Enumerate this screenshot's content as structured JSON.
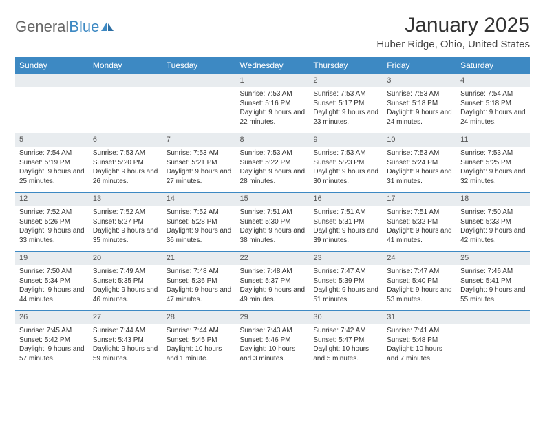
{
  "logo": {
    "text_general": "General",
    "text_blue": "Blue",
    "accent_color": "#3d89c3",
    "text_color": "#666666"
  },
  "title": "January 2025",
  "location": "Huber Ridge, Ohio, United States",
  "colors": {
    "header_bg": "#3d89c3",
    "header_text": "#ffffff",
    "daynum_bg": "#e8ecef",
    "daynum_border_top": "#3d89c3",
    "body_text": "#333333",
    "page_bg": "#ffffff"
  },
  "typography": {
    "title_fontsize": 30,
    "location_fontsize": 15,
    "weekday_fontsize": 12,
    "daynum_fontsize": 11,
    "cell_fontsize": 10,
    "font_family": "Arial"
  },
  "weekdays": [
    "Sunday",
    "Monday",
    "Tuesday",
    "Wednesday",
    "Thursday",
    "Friday",
    "Saturday"
  ],
  "weeks": [
    [
      null,
      null,
      null,
      {
        "n": "1",
        "sunrise": "7:53 AM",
        "sunset": "5:16 PM",
        "daylight": "9 hours and 22 minutes."
      },
      {
        "n": "2",
        "sunrise": "7:53 AM",
        "sunset": "5:17 PM",
        "daylight": "9 hours and 23 minutes."
      },
      {
        "n": "3",
        "sunrise": "7:53 AM",
        "sunset": "5:18 PM",
        "daylight": "9 hours and 24 minutes."
      },
      {
        "n": "4",
        "sunrise": "7:54 AM",
        "sunset": "5:18 PM",
        "daylight": "9 hours and 24 minutes."
      }
    ],
    [
      {
        "n": "5",
        "sunrise": "7:54 AM",
        "sunset": "5:19 PM",
        "daylight": "9 hours and 25 minutes."
      },
      {
        "n": "6",
        "sunrise": "7:53 AM",
        "sunset": "5:20 PM",
        "daylight": "9 hours and 26 minutes."
      },
      {
        "n": "7",
        "sunrise": "7:53 AM",
        "sunset": "5:21 PM",
        "daylight": "9 hours and 27 minutes."
      },
      {
        "n": "8",
        "sunrise": "7:53 AM",
        "sunset": "5:22 PM",
        "daylight": "9 hours and 28 minutes."
      },
      {
        "n": "9",
        "sunrise": "7:53 AM",
        "sunset": "5:23 PM",
        "daylight": "9 hours and 30 minutes."
      },
      {
        "n": "10",
        "sunrise": "7:53 AM",
        "sunset": "5:24 PM",
        "daylight": "9 hours and 31 minutes."
      },
      {
        "n": "11",
        "sunrise": "7:53 AM",
        "sunset": "5:25 PM",
        "daylight": "9 hours and 32 minutes."
      }
    ],
    [
      {
        "n": "12",
        "sunrise": "7:52 AM",
        "sunset": "5:26 PM",
        "daylight": "9 hours and 33 minutes."
      },
      {
        "n": "13",
        "sunrise": "7:52 AM",
        "sunset": "5:27 PM",
        "daylight": "9 hours and 35 minutes."
      },
      {
        "n": "14",
        "sunrise": "7:52 AM",
        "sunset": "5:28 PM",
        "daylight": "9 hours and 36 minutes."
      },
      {
        "n": "15",
        "sunrise": "7:51 AM",
        "sunset": "5:30 PM",
        "daylight": "9 hours and 38 minutes."
      },
      {
        "n": "16",
        "sunrise": "7:51 AM",
        "sunset": "5:31 PM",
        "daylight": "9 hours and 39 minutes."
      },
      {
        "n": "17",
        "sunrise": "7:51 AM",
        "sunset": "5:32 PM",
        "daylight": "9 hours and 41 minutes."
      },
      {
        "n": "18",
        "sunrise": "7:50 AM",
        "sunset": "5:33 PM",
        "daylight": "9 hours and 42 minutes."
      }
    ],
    [
      {
        "n": "19",
        "sunrise": "7:50 AM",
        "sunset": "5:34 PM",
        "daylight": "9 hours and 44 minutes."
      },
      {
        "n": "20",
        "sunrise": "7:49 AM",
        "sunset": "5:35 PM",
        "daylight": "9 hours and 46 minutes."
      },
      {
        "n": "21",
        "sunrise": "7:48 AM",
        "sunset": "5:36 PM",
        "daylight": "9 hours and 47 minutes."
      },
      {
        "n": "22",
        "sunrise": "7:48 AM",
        "sunset": "5:37 PM",
        "daylight": "9 hours and 49 minutes."
      },
      {
        "n": "23",
        "sunrise": "7:47 AM",
        "sunset": "5:39 PM",
        "daylight": "9 hours and 51 minutes."
      },
      {
        "n": "24",
        "sunrise": "7:47 AM",
        "sunset": "5:40 PM",
        "daylight": "9 hours and 53 minutes."
      },
      {
        "n": "25",
        "sunrise": "7:46 AM",
        "sunset": "5:41 PM",
        "daylight": "9 hours and 55 minutes."
      }
    ],
    [
      {
        "n": "26",
        "sunrise": "7:45 AM",
        "sunset": "5:42 PM",
        "daylight": "9 hours and 57 minutes."
      },
      {
        "n": "27",
        "sunrise": "7:44 AM",
        "sunset": "5:43 PM",
        "daylight": "9 hours and 59 minutes."
      },
      {
        "n": "28",
        "sunrise": "7:44 AM",
        "sunset": "5:45 PM",
        "daylight": "10 hours and 1 minute."
      },
      {
        "n": "29",
        "sunrise": "7:43 AM",
        "sunset": "5:46 PM",
        "daylight": "10 hours and 3 minutes."
      },
      {
        "n": "30",
        "sunrise": "7:42 AM",
        "sunset": "5:47 PM",
        "daylight": "10 hours and 5 minutes."
      },
      {
        "n": "31",
        "sunrise": "7:41 AM",
        "sunset": "5:48 PM",
        "daylight": "10 hours and 7 minutes."
      },
      null
    ]
  ],
  "labels": {
    "sunrise": "Sunrise:",
    "sunset": "Sunset:",
    "daylight": "Daylight:"
  }
}
